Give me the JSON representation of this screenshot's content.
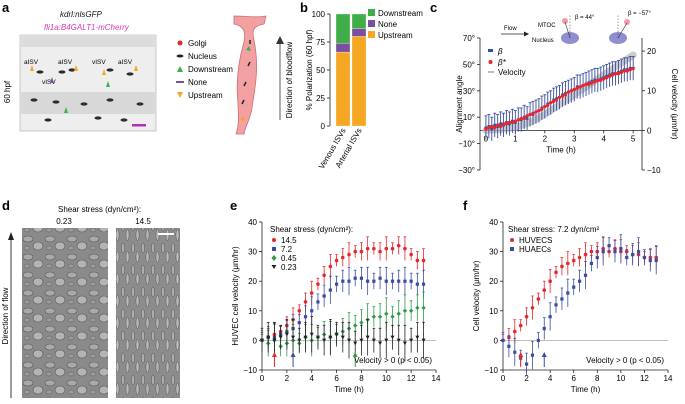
{
  "panels": {
    "a": {
      "letter": "a",
      "line1": "kdrl:nlsGFP",
      "line2": "fli1a:B4GALT1-mCherry",
      "time_label": "60 hpf",
      "vessel_labels": [
        "aISV",
        "vISV",
        "aISV",
        "vISV",
        "aISV"
      ],
      "legend": [
        {
          "label": "Golgi",
          "icon": "red-dot-icon"
        },
        {
          "label": "Nucleus",
          "icon": "black-nucleus-icon"
        },
        {
          "label": "Downstream",
          "icon": "green-triangle-icon"
        },
        {
          "label": "None",
          "icon": "purple-dash-icon"
        },
        {
          "label": "Upstream",
          "icon": "orange-triangle-icon"
        }
      ],
      "flow_label": "Direction of bloodflow"
    },
    "b": {
      "letter": "b"
    },
    "c": {
      "letter": "c",
      "inset": {
        "flow": "Flow",
        "mtoc": "MTOC",
        "nucleus": "Nucleus",
        "beta1": "β = 44°",
        "beta2": "β = −57°"
      }
    },
    "d": {
      "letter": "d",
      "title": "Shear stress (dyn/cm²):",
      "left_value": "0.23",
      "right_value": "14.5",
      "axis_label": "Direction of flow"
    },
    "e": {
      "letter": "e",
      "legend_title": "Shear stress (dyn/cm²):",
      "sig_label": "Velocity > 0 (p < 0.05)"
    },
    "f": {
      "letter": "f",
      "legend_title": "Shear stress: 7.2 dyn/cm²",
      "sig_label": "Velocity > 0 (p < 0.05)"
    }
  },
  "colors": {
    "downstream": "#3fae49",
    "none": "#7b4fa0",
    "upstream": "#f5a623",
    "red": "#e8262b",
    "blue": "#3a4ea0",
    "green": "#2e9b46",
    "black": "#222222",
    "grey": "#bbbbbb"
  },
  "chart_data": [
    {
      "panel": "b",
      "type": "bar",
      "stacked": true,
      "categories": [
        "Venous ISVs",
        "Arterial ISVs"
      ],
      "series": [
        {
          "name": "Upstream",
          "values": [
            66,
            80
          ]
        },
        {
          "name": "None",
          "values": [
            8,
            7
          ]
        },
        {
          "name": "Downstream",
          "values": [
            26,
            13
          ]
        }
      ],
      "ylabel": "% Polarization (60 hpf)",
      "yticks": [
        "0",
        "25",
        "50",
        "75",
        "100"
      ],
      "ylim": [
        0,
        100
      ],
      "legend_placement": "top-right"
    },
    {
      "panel": "c",
      "type": "line",
      "xlabel": "Time (h)",
      "ylabel": "Alignment angle",
      "y2label": "Cell velocity (μm/hr)",
      "xlim": [
        -0.2,
        5.3
      ],
      "ylim": [
        -30,
        70
      ],
      "y2lim": [
        -10,
        23.3
      ],
      "xticks": [
        "0",
        "1",
        "2",
        "3",
        "4",
        "5"
      ],
      "yticks": [
        "−30°",
        "−10°",
        "10°",
        "30°",
        "50°",
        "70°"
      ],
      "y2ticks": [
        "−10",
        "0",
        "10",
        "20"
      ],
      "legend_labels": [
        "β",
        "β*",
        "Velocity"
      ],
      "series": [
        {
          "name": "β",
          "x": [
            0,
            0.1,
            0.2,
            0.3,
            0.4,
            0.5,
            0.6,
            0.7,
            0.8,
            0.9,
            1.0,
            1.1,
            1.2,
            1.3,
            1.4,
            1.5,
            1.6,
            1.7,
            1.8,
            1.9,
            2.0,
            2.1,
            2.2,
            2.3,
            2.4,
            2.5,
            2.6,
            2.7,
            2.8,
            2.9,
            3.0,
            3.1,
            3.2,
            3.3,
            3.4,
            3.5,
            3.6,
            3.7,
            3.8,
            3.9,
            4.0,
            4.1,
            4.2,
            4.3,
            4.4,
            4.5,
            4.6,
            4.7,
            4.8,
            4.9,
            5.0
          ],
          "y": [
            2,
            3,
            1,
            4,
            3,
            5,
            4,
            6,
            5,
            7,
            6,
            8,
            8,
            10,
            9,
            12,
            13,
            14,
            15,
            17,
            18,
            20,
            21,
            23,
            24,
            25,
            27,
            28,
            29,
            30,
            31,
            33,
            33,
            34,
            35,
            36,
            37,
            38,
            38,
            39,
            40,
            41,
            42,
            43,
            43,
            44,
            45,
            46,
            46,
            47,
            47
          ]
        },
        {
          "name": "β*",
          "x": [
            0,
            0.1,
            0.2,
            0.3,
            0.4,
            0.5,
            0.6,
            0.7,
            0.8,
            0.9,
            1.0,
            1.1,
            1.2,
            1.3,
            1.4,
            1.5,
            1.6,
            1.7,
            1.8,
            1.9,
            2.0,
            2.1,
            2.2,
            2.3,
            2.4,
            2.5,
            2.6,
            2.7,
            2.8,
            2.9,
            3.0,
            3.1,
            3.2,
            3.3,
            3.4,
            3.5,
            3.6,
            3.7,
            3.8,
            3.9,
            4.0,
            4.1,
            4.2,
            4.3,
            4.4,
            4.5,
            4.6,
            4.7,
            4.8,
            4.9,
            5.0
          ],
          "y": [
            1,
            2,
            3,
            2,
            4,
            3,
            5,
            5,
            6,
            6,
            7,
            8,
            9,
            9,
            11,
            12,
            12,
            14,
            15,
            16,
            18,
            19,
            21,
            22,
            23,
            25,
            26,
            27,
            29,
            30,
            31,
            32,
            33,
            34,
            35,
            35,
            36,
            37,
            38,
            38,
            39,
            40,
            41,
            42,
            43,
            43,
            44,
            45,
            45,
            46,
            47
          ]
        },
        {
          "name": "Velocity",
          "x": [
            0,
            0.5,
            1,
            1.5,
            2,
            2.5,
            3,
            3.5,
            4,
            4.5,
            5
          ],
          "y": [
            0,
            0.2,
            0.8,
            2,
            4,
            6.5,
            9,
            11.5,
            14,
            16.5,
            19
          ]
        }
      ]
    },
    {
      "panel": "e",
      "type": "line",
      "xlabel": "Time (h)",
      "ylabel": "HUVEC cell velocity (μm/hr)",
      "xlim": [
        0,
        14
      ],
      "ylim": [
        -10,
        40
      ],
      "xticks": [
        "0",
        "2",
        "4",
        "6",
        "8",
        "10",
        "12",
        "14"
      ],
      "yticks": [
        "−10",
        "0",
        "10",
        "20",
        "30",
        "40"
      ],
      "series": [
        {
          "name": "14.5",
          "x": [
            0,
            0.5,
            1,
            1.5,
            2,
            2.5,
            3,
            3.5,
            4,
            4.5,
            5,
            5.5,
            6,
            6.5,
            7,
            7.5,
            8,
            8.5,
            9,
            9.5,
            10,
            10.5,
            11,
            11.5,
            12,
            12.5,
            13
          ],
          "y": [
            0,
            1,
            2,
            3,
            5,
            7,
            10,
            13,
            16,
            19,
            22,
            25,
            27,
            28,
            29,
            30,
            30,
            31,
            31,
            30,
            31,
            31,
            32,
            31,
            29,
            27,
            27
          ]
        },
        {
          "name": "7.2",
          "x": [
            0,
            0.5,
            1,
            1.5,
            2,
            2.5,
            3,
            3.5,
            4,
            4.5,
            5,
            5.5,
            6,
            6.5,
            7,
            7.5,
            8,
            8.5,
            9,
            9.5,
            10,
            10.5,
            11,
            11.5,
            12,
            12.5,
            13
          ],
          "y": [
            0,
            1,
            1,
            2,
            3,
            4,
            6,
            8,
            10,
            13,
            15,
            17,
            19,
            20,
            20,
            21,
            21,
            20,
            20,
            21,
            20,
            20,
            20,
            20,
            20,
            19,
            19
          ]
        },
        {
          "name": "0.45",
          "x": [
            0,
            0.5,
            1,
            1.5,
            2,
            2.5,
            3,
            3.5,
            4,
            4.5,
            5,
            5.5,
            6,
            6.5,
            7,
            7.5,
            8,
            8.5,
            9,
            9.5,
            10,
            10.5,
            11,
            11.5,
            12,
            12.5,
            13
          ],
          "y": [
            0,
            -1,
            0,
            -2,
            -1,
            0,
            -1,
            1,
            0,
            1,
            2,
            1,
            2,
            3,
            4,
            5,
            6,
            7,
            8,
            8,
            9,
            8,
            9,
            10,
            10,
            11,
            11
          ]
        },
        {
          "name": "0.23",
          "x": [
            0,
            0.5,
            1,
            1.5,
            2,
            2.5,
            3,
            3.5,
            4,
            4.5,
            5,
            5.5,
            6,
            6.5,
            7,
            7.5,
            8,
            8.5,
            9,
            9.5,
            10,
            10.5,
            11,
            11.5,
            12,
            12.5,
            13
          ],
          "y": [
            0,
            1,
            0,
            1,
            2,
            1,
            0,
            1,
            2,
            1,
            0,
            1,
            2,
            1,
            0,
            -1,
            0,
            1,
            0,
            -1,
            0,
            1,
            0,
            -1,
            0,
            1,
            0
          ]
        }
      ],
      "arrows": [
        {
          "x": 1,
          "color": "red"
        },
        {
          "x": 2.5,
          "color": "blue"
        },
        {
          "x": 7.5,
          "color": "green"
        }
      ]
    },
    {
      "panel": "f",
      "type": "line",
      "xlabel": "Time (h)",
      "ylabel": "Cell velocity (μm/hr)",
      "xlim": [
        0,
        14
      ],
      "ylim": [
        -10,
        40
      ],
      "xticks": [
        "0",
        "2",
        "4",
        "6",
        "8",
        "10",
        "12",
        "14"
      ],
      "yticks": [
        "−10",
        "0",
        "10",
        "20",
        "30",
        "40"
      ],
      "series": [
        {
          "name": "HUVECS",
          "x": [
            0,
            0.5,
            1,
            1.5,
            2,
            2.5,
            3,
            3.5,
            4,
            4.5,
            5,
            5.5,
            6,
            6.5,
            7,
            7.5,
            8,
            8.5,
            9,
            9.5,
            10,
            10.5,
            11,
            11.5,
            12,
            12.5,
            13
          ],
          "y": [
            0,
            1,
            3,
            5,
            8,
            11,
            14,
            17,
            20,
            23,
            25,
            26,
            27,
            28,
            29,
            30,
            30,
            31,
            30,
            31,
            30,
            30,
            29,
            29,
            28,
            28,
            28
          ]
        },
        {
          "name": "HUAECs",
          "x": [
            0,
            0.5,
            1,
            1.5,
            2,
            2.5,
            3,
            3.5,
            4,
            4.5,
            5,
            5.5,
            6,
            6.5,
            7,
            7.5,
            8,
            8.5,
            9,
            9.5,
            10,
            10.5,
            11,
            11.5,
            12,
            12.5,
            13
          ],
          "y": [
            0,
            -2,
            -4,
            -6,
            -8,
            -5,
            0,
            4,
            8,
            12,
            14,
            16,
            18,
            20,
            22,
            26,
            28,
            30,
            32,
            30,
            31,
            28,
            29,
            30,
            28,
            27,
            27
          ]
        }
      ],
      "arrows": [
        {
          "x": 1.5,
          "color": "red"
        },
        {
          "x": 3.5,
          "color": "blue"
        }
      ]
    }
  ]
}
